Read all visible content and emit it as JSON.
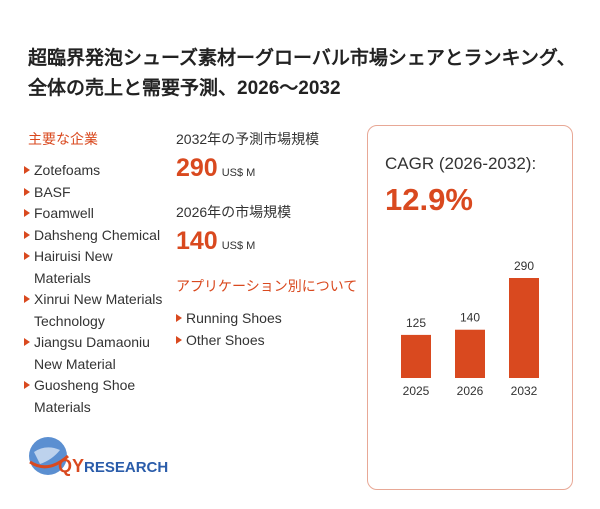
{
  "header": {
    "title": "超臨界発泡シューズ素材ーグローバル市場シェアとランキング、全体の売上と需要予測、2026～2032"
  },
  "companies": {
    "heading": "主要な企業",
    "items": [
      "Zotefoams",
      "BASF",
      "Foamwell",
      "Dahsheng Chemical",
      "Hairuisi New Materials",
      "Xinrui New Materials Technology",
      "Jiangsu Damaoniu New Material",
      "Guosheng Shoe Materials"
    ]
  },
  "market": {
    "forecast_label": "2032年の予測市場規模",
    "forecast_value": 290,
    "forecast_unit": "US$ M",
    "current_label": "2026年の市場規模",
    "current_value": 140,
    "current_unit": "US$ M"
  },
  "applications": {
    "heading": "アプリケーション別について",
    "items": [
      "Running Shoes",
      "Other Shoes"
    ]
  },
  "cagr": {
    "label": "CAGR (2026-2032):",
    "value": "12.9%"
  },
  "chart_data": {
    "type": "bar",
    "categories": [
      "2025",
      "2026",
      "2032"
    ],
    "values": [
      125,
      140,
      290
    ],
    "color": "#d9491f"
  },
  "logo": {
    "prefix": "QY",
    "suffix": "RESEARCH"
  }
}
